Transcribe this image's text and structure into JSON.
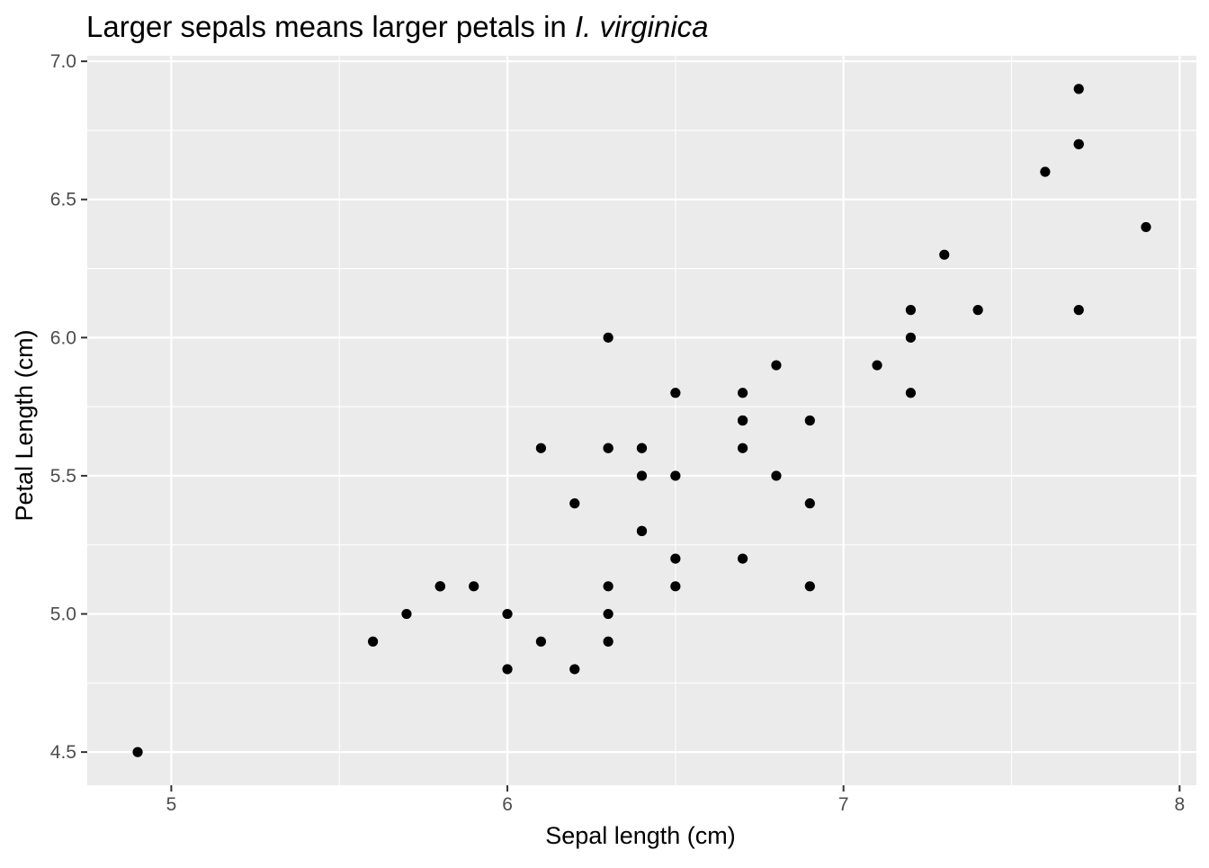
{
  "chart_data": {
    "type": "scatter",
    "title": "Larger sepals means larger petals in",
    "title_species": "I. virginica",
    "xlabel": "Sepal length (cm)",
    "ylabel": "Petal Length (cm)",
    "xlim": [
      4.75,
      8.05
    ],
    "ylim": [
      4.38,
      7.02
    ],
    "x_ticks": [
      5,
      6,
      7,
      8
    ],
    "x_tick_labels": [
      "5",
      "6",
      "7",
      "8"
    ],
    "y_ticks": [
      4.5,
      5.0,
      5.5,
      6.0,
      6.5,
      7.0
    ],
    "y_tick_labels": [
      "4.5",
      "5.0",
      "5.5",
      "6.0",
      "6.5",
      "7.0"
    ],
    "grid": true,
    "colors": {
      "panel_background": "#ebebeb",
      "grid_major": "#ffffff",
      "point": "#000000",
      "tick_label": "#4d4d4d"
    },
    "points": [
      {
        "x": 6.3,
        "y": 6.0
      },
      {
        "x": 5.8,
        "y": 5.1
      },
      {
        "x": 7.1,
        "y": 5.9
      },
      {
        "x": 6.3,
        "y": 5.6
      },
      {
        "x": 6.5,
        "y": 5.8
      },
      {
        "x": 7.6,
        "y": 6.6
      },
      {
        "x": 4.9,
        "y": 4.5
      },
      {
        "x": 7.3,
        "y": 6.3
      },
      {
        "x": 6.7,
        "y": 5.8
      },
      {
        "x": 7.2,
        "y": 6.1
      },
      {
        "x": 6.5,
        "y": 5.1
      },
      {
        "x": 6.4,
        "y": 5.3
      },
      {
        "x": 6.8,
        "y": 5.5
      },
      {
        "x": 5.7,
        "y": 5.0
      },
      {
        "x": 5.8,
        "y": 5.1
      },
      {
        "x": 6.4,
        "y": 5.3
      },
      {
        "x": 6.5,
        "y": 5.5
      },
      {
        "x": 7.7,
        "y": 6.7
      },
      {
        "x": 7.7,
        "y": 6.9
      },
      {
        "x": 6.0,
        "y": 5.0
      },
      {
        "x": 6.9,
        "y": 5.7
      },
      {
        "x": 5.6,
        "y": 4.9
      },
      {
        "x": 7.7,
        "y": 6.7
      },
      {
        "x": 6.3,
        "y": 4.9
      },
      {
        "x": 6.7,
        "y": 5.7
      },
      {
        "x": 7.2,
        "y": 6.0
      },
      {
        "x": 6.2,
        "y": 4.8
      },
      {
        "x": 6.1,
        "y": 4.9
      },
      {
        "x": 6.4,
        "y": 5.6
      },
      {
        "x": 7.2,
        "y": 5.8
      },
      {
        "x": 7.4,
        "y": 6.1
      },
      {
        "x": 7.9,
        "y": 6.4
      },
      {
        "x": 6.4,
        "y": 5.6
      },
      {
        "x": 6.3,
        "y": 5.1
      },
      {
        "x": 6.1,
        "y": 5.6
      },
      {
        "x": 7.7,
        "y": 6.1
      },
      {
        "x": 6.3,
        "y": 5.6
      },
      {
        "x": 6.4,
        "y": 5.5
      },
      {
        "x": 6.0,
        "y": 4.8
      },
      {
        "x": 6.9,
        "y": 5.4
      },
      {
        "x": 6.7,
        "y": 5.6
      },
      {
        "x": 6.9,
        "y": 5.1
      },
      {
        "x": 5.8,
        "y": 5.1
      },
      {
        "x": 6.8,
        "y": 5.9
      },
      {
        "x": 6.7,
        "y": 5.7
      },
      {
        "x": 6.7,
        "y": 5.2
      },
      {
        "x": 6.3,
        "y": 5.0
      },
      {
        "x": 6.5,
        "y": 5.2
      },
      {
        "x": 6.2,
        "y": 5.4
      },
      {
        "x": 5.9,
        "y": 5.1
      }
    ]
  }
}
